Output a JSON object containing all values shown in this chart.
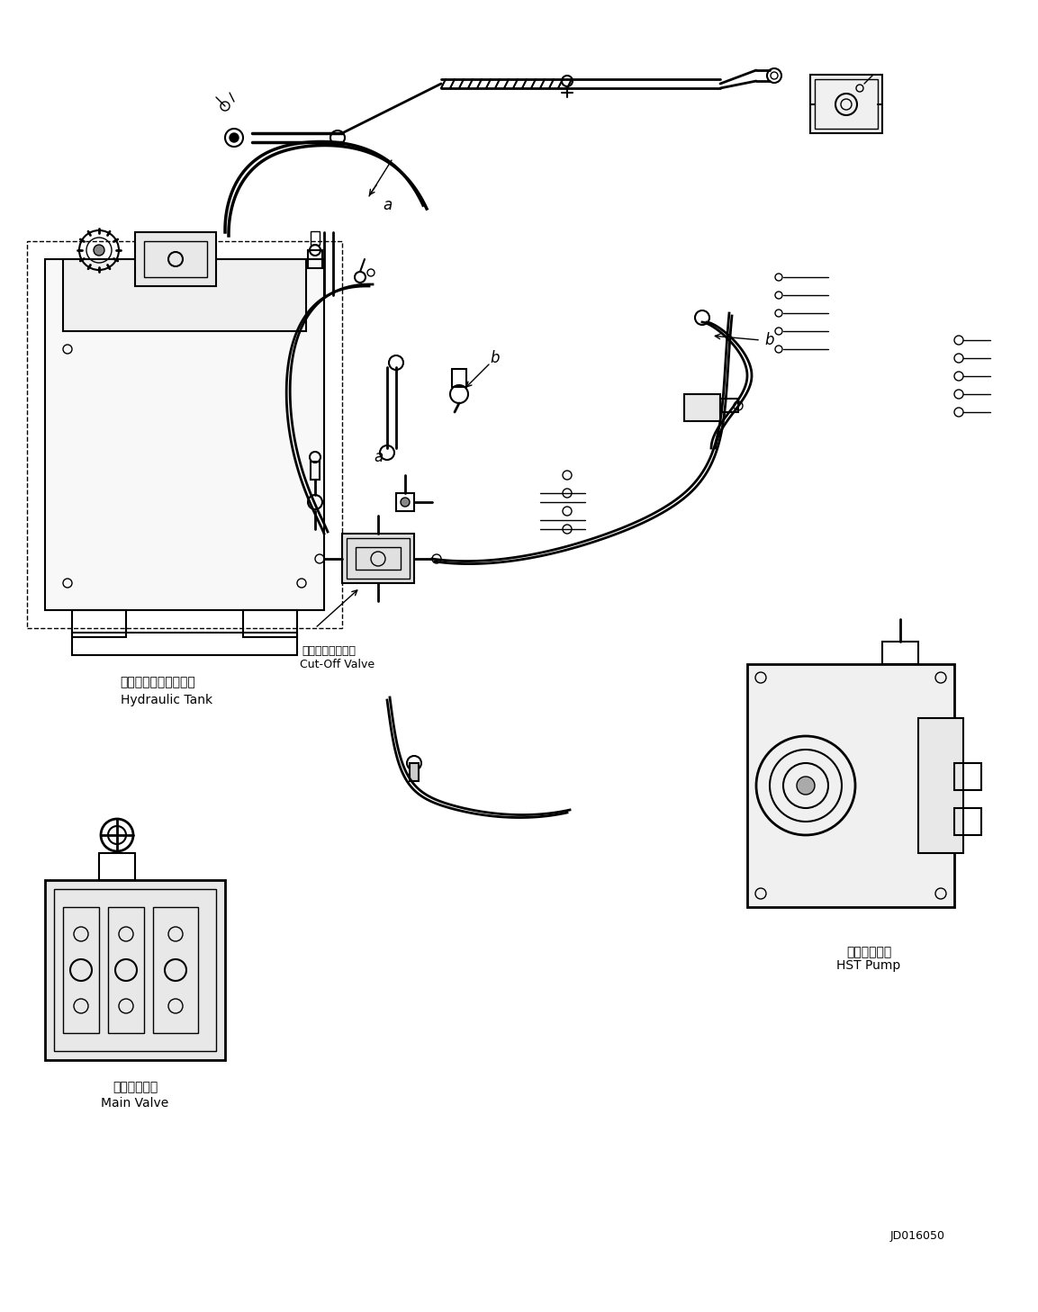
{
  "background_color": "#ffffff",
  "line_color": "#000000",
  "fig_width": 11.53,
  "fig_height": 14.58,
  "diagram_id": "JD016050",
  "labels": {
    "hydraulic_tank_jp": "ハイドロリックタンク",
    "hydraulic_tank_en": "Hydraulic Tank",
    "cut_off_valve_jp": "カットオフバルブ",
    "cut_off_valve_en": "Cut-Off Valve",
    "main_valve_jp": "メインバルブ",
    "main_valve_en": "Main Valve",
    "hst_pump_jp": "ＨＳＴポンプ",
    "hst_pump_en": "HST Pump",
    "label_a": "a",
    "label_b": "b"
  }
}
